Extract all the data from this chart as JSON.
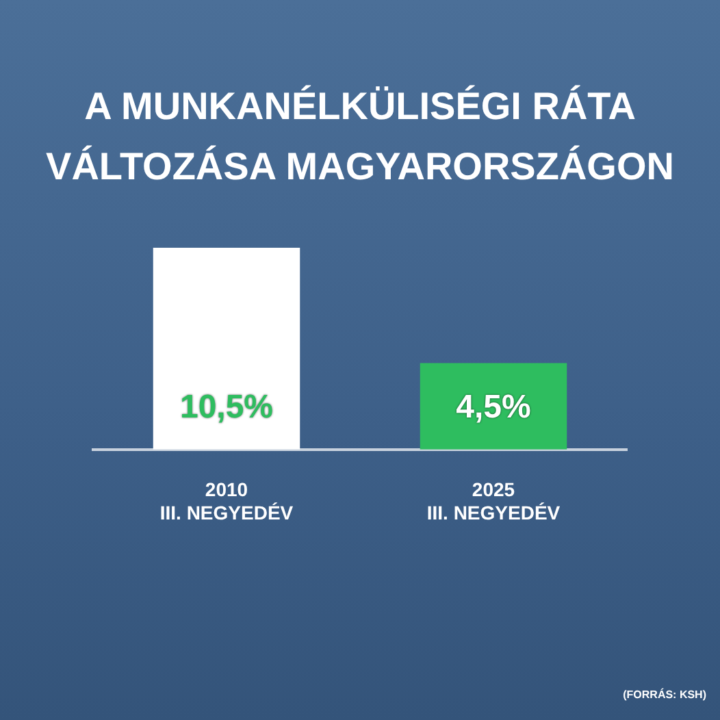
{
  "chart_data": {
    "type": "bar",
    "title": "A MUNKANÉLKÜLISÉGI RÁTA VÁLTOZÁSA MAGYARORSZÁGON",
    "categories": [
      "2010\nIII. NEGYEDÉV",
      "2025\nIII. NEGYEDÉV"
    ],
    "values": [
      10.5,
      4.5
    ],
    "colors": [
      "#ffffff",
      "#2ebd5f"
    ],
    "value_labels": [
      "10,5%",
      "4,5%"
    ],
    "annotations": [
      "(FORRÁS: KSH)"
    ],
    "grid": false,
    "legend": false
  }
}
